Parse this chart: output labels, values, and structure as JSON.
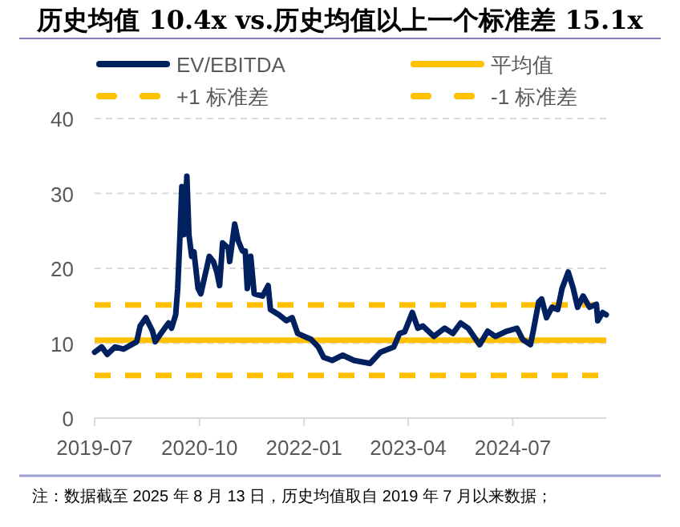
{
  "chart_data": {
    "type": "line",
    "title": "历史均值 10.4x vs.历史均值以上一个标准差 15.1x",
    "annotations": [
      "注：数据截至 2025 年 8 月 13 日，历史均值取自 2019 年 7 月以来数据；"
    ],
    "x": [
      "2019-07-01",
      "2019-08-01",
      "2019-08-25",
      "2019-09-28",
      "2019-11-04",
      "2020-01-01",
      "2020-01-16",
      "2020-02-10",
      "2020-03-10",
      "2020-03-22",
      "2020-04-16",
      "2020-05-19",
      "2020-06-01",
      "2020-06-19",
      "2020-06-28",
      "2020-07-07",
      "2020-07-16",
      "2020-07-25",
      "2020-08-07",
      "2020-08-16",
      "2020-08-28",
      "2020-09-07",
      "2020-09-25",
      "2020-10-07",
      "2020-11-13",
      "2020-12-01",
      "2020-12-16",
      "2020-12-28",
      "2021-01-10",
      "2021-02-04",
      "2021-02-10",
      "2021-03-04",
      "2021-03-19",
      "2021-04-07",
      "2021-04-19",
      "2021-04-28",
      "2021-05-13",
      "2021-05-28",
      "2021-07-04",
      "2021-07-28",
      "2021-08-07",
      "2021-09-13",
      "2021-10-16",
      "2021-11-10",
      "2021-12-04",
      "2022-02-01",
      "2022-03-04",
      "2022-03-28",
      "2022-05-04",
      "2022-06-19",
      "2022-08-07",
      "2022-10-16",
      "2022-12-01",
      "2023-01-28",
      "2023-02-22",
      "2023-03-16",
      "2023-04-19",
      "2023-05-13",
      "2023-06-04",
      "2023-07-22",
      "2023-09-07",
      "2023-10-13",
      "2023-11-16",
      "2023-12-19",
      "2024-02-07",
      "2024-03-13",
      "2024-04-16",
      "2024-06-04",
      "2024-07-19",
      "2024-08-13",
      "2024-09-16",
      "2024-09-28",
      "2024-10-22",
      "2024-11-04",
      "2024-11-25",
      "2024-12-19",
      "2025-01-13",
      "2025-02-01",
      "2025-02-28",
      "2025-03-22",
      "2025-04-10",
      "2025-05-04",
      "2025-06-01",
      "2025-07-01",
      "2025-07-07",
      "2025-07-28",
      "2025-08-13"
    ],
    "series": [
      {
        "name": "EV/EBITDA",
        "color": "#002060",
        "values": [
          8.8,
          9.5,
          8.5,
          9.5,
          9.2,
          10.2,
          12.3,
          13.4,
          11.6,
          10.2,
          11.3,
          12.7,
          12.0,
          13.8,
          17.3,
          23.7,
          30.9,
          24.5,
          32.3,
          24.5,
          21.6,
          22.2,
          17.3,
          16.6,
          21.6,
          20.9,
          19.5,
          17.7,
          23.4,
          22.7,
          20.9,
          25.9,
          23.7,
          22.3,
          22.3,
          17.3,
          21.6,
          16.6,
          16.3,
          17.7,
          14.5,
          13.8,
          13.0,
          13.4,
          11.3,
          10.5,
          9.5,
          8.1,
          7.7,
          8.4,
          7.7,
          7.3,
          8.8,
          9.5,
          11.3,
          11.5,
          14.1,
          12.0,
          12.3,
          10.9,
          12.0,
          11.3,
          12.7,
          12.0,
          9.8,
          11.6,
          10.9,
          11.6,
          12.0,
          10.5,
          9.8,
          11.6,
          15.5,
          15.9,
          13.4,
          14.8,
          14.5,
          17.3,
          19.5,
          17.3,
          14.8,
          16.3,
          14.8,
          15.2,
          13.0,
          14.1,
          13.8
        ]
      }
    ],
    "ref_lines": [
      {
        "axis": "y",
        "value": 10.4,
        "label": "平均值",
        "color": "#ffc000",
        "line_style": "solid"
      },
      {
        "axis": "y",
        "value": 15.1,
        "label": "+1 标准差",
        "color": "#ffc000",
        "line_style": "dashed"
      },
      {
        "axis": "y",
        "value": 5.7,
        "label": "-1 标准差",
        "color": "#ffc000",
        "line_style": "dashed"
      }
    ],
    "xlim": [
      "2019-07-01",
      "2025-08-13"
    ],
    "xticks": [
      "2019-07",
      "2020-10",
      "2022-01",
      "2023-04",
      "2024-07"
    ],
    "ylim": [
      0,
      40
    ],
    "yticks": [
      0,
      10,
      20,
      30,
      40
    ],
    "grid": "y",
    "legend": "top",
    "marker": "none",
    "line_style": "solid"
  }
}
